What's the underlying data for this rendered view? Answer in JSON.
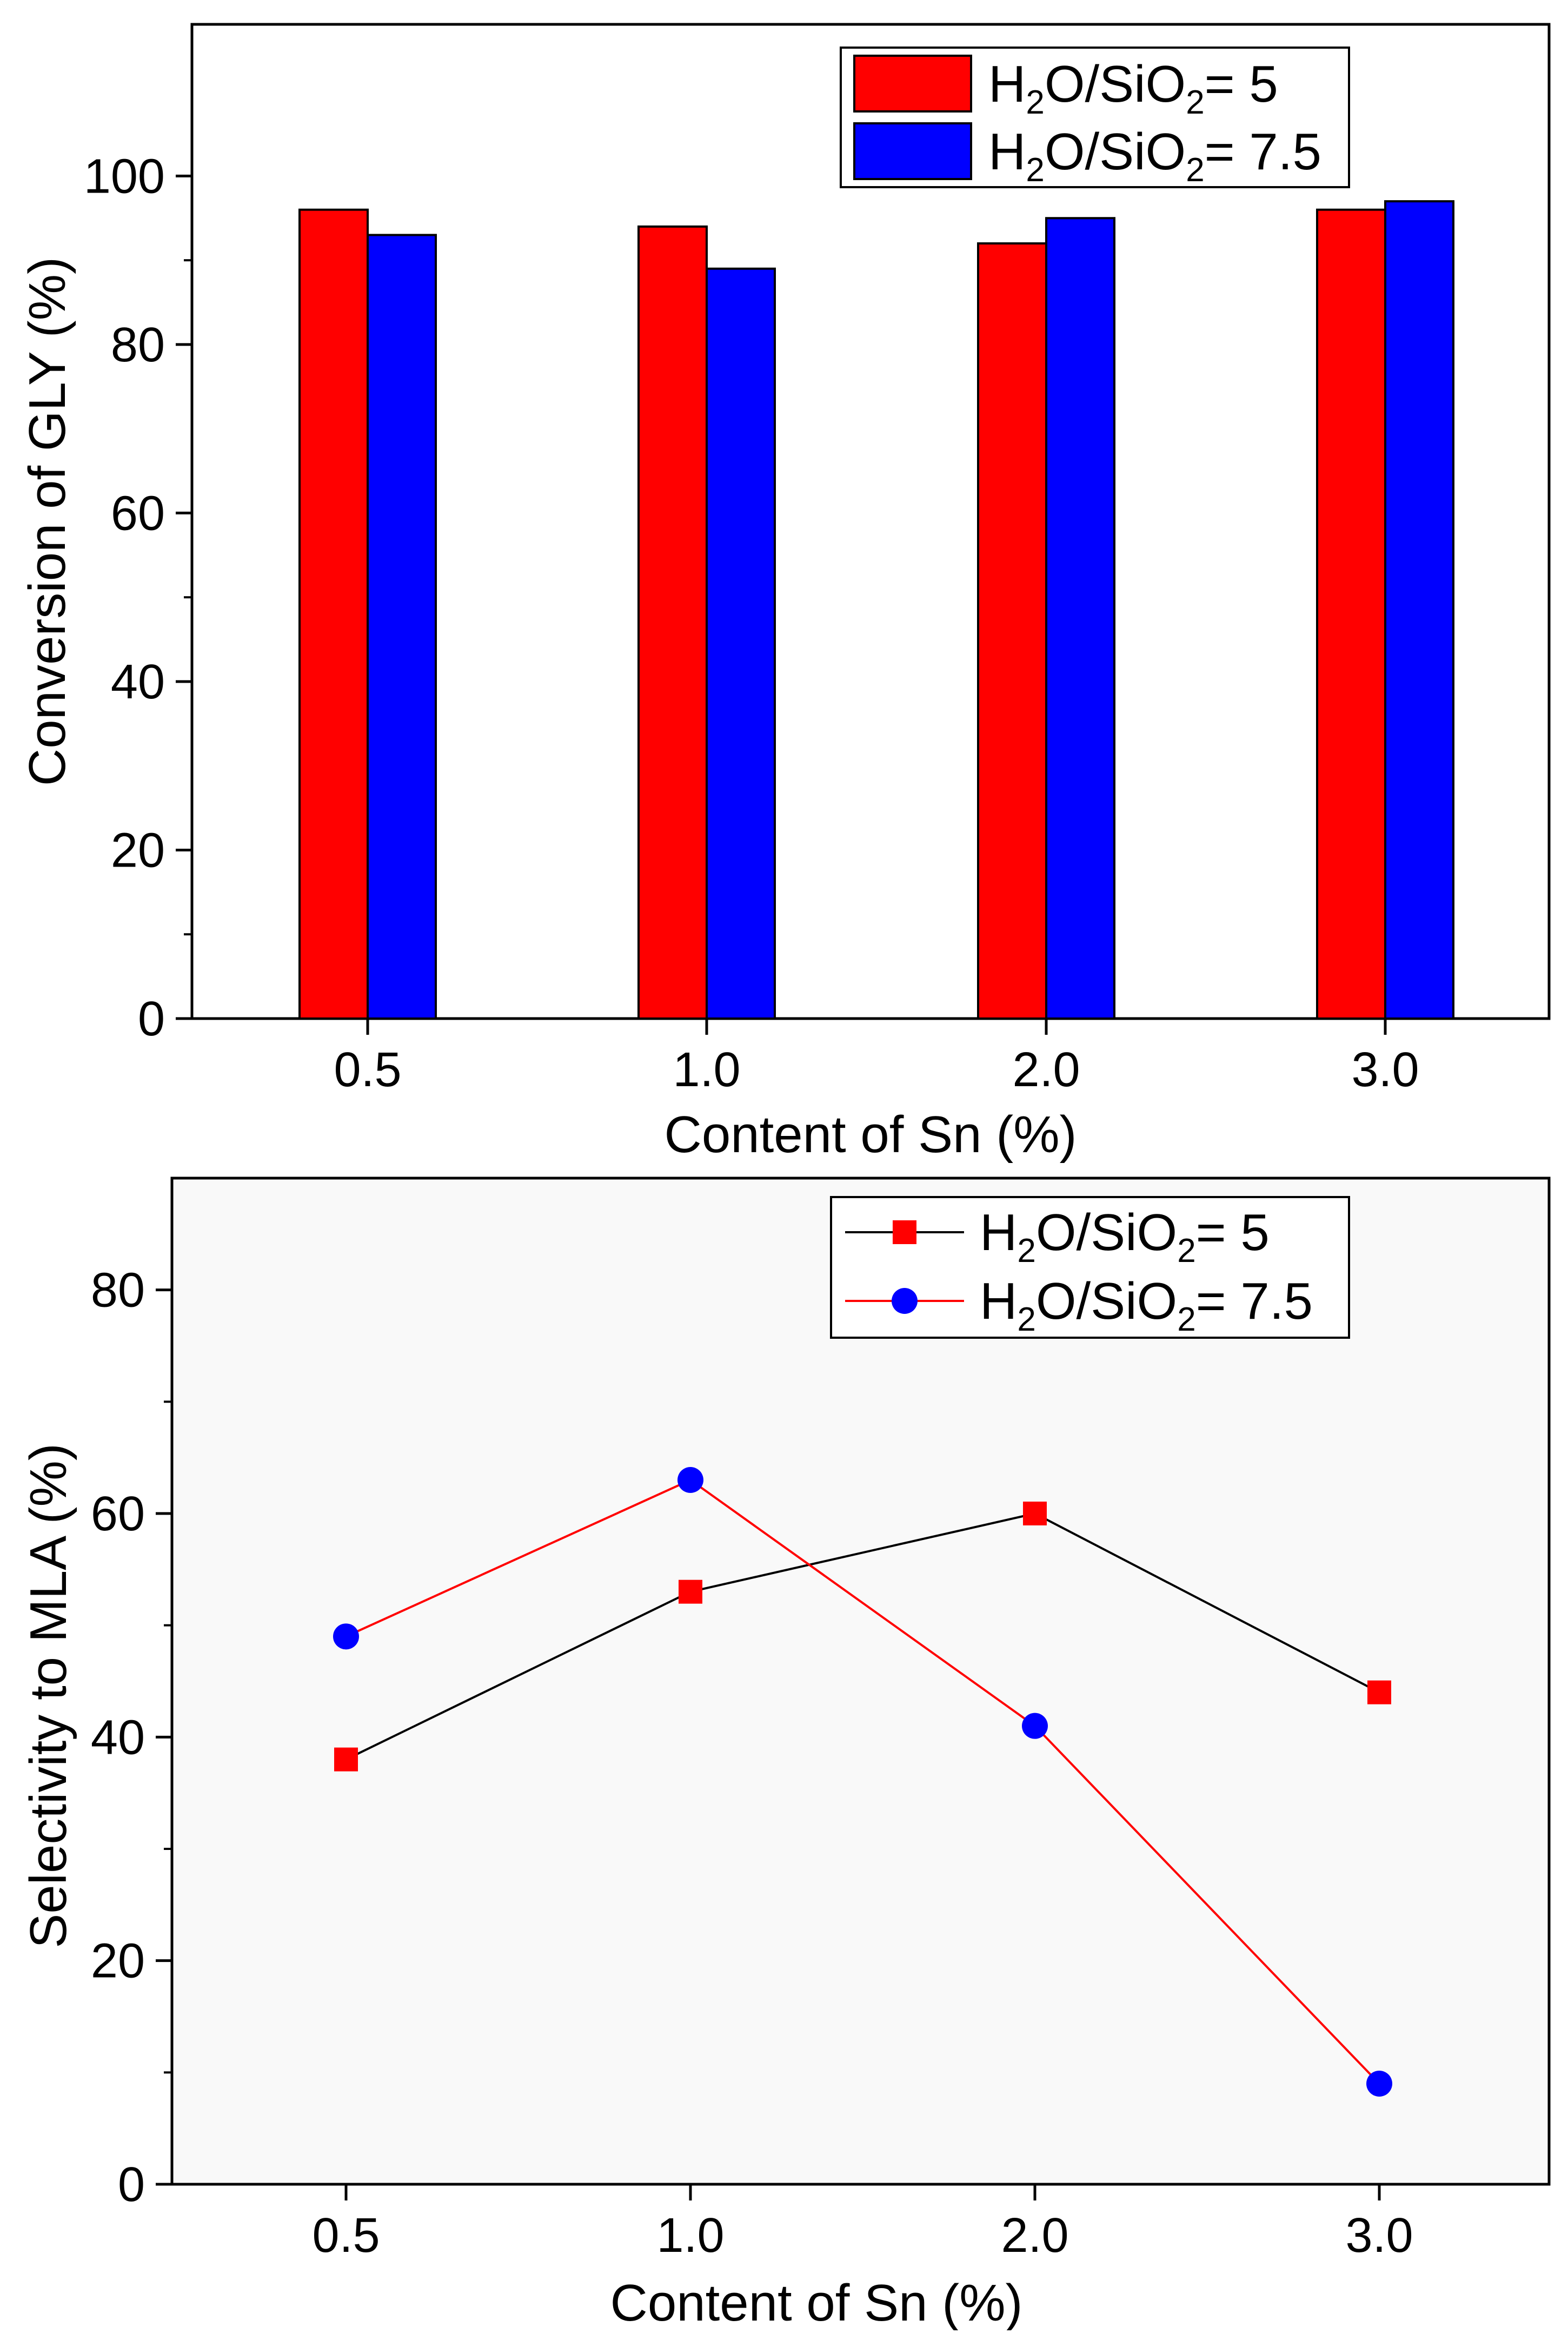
{
  "chart_data": [
    {
      "type": "bar",
      "categories": [
        "0.5",
        "1.0",
        "2.0",
        "3.0"
      ],
      "series": [
        {
          "name": "H2O/SiO2= 5",
          "legend_base": "H",
          "legend_sub1": "2",
          "legend_mid": "O/SiO",
          "legend_sub2": "2",
          "legend_tail": "= 5",
          "color": "#ff0000",
          "values": [
            96,
            94,
            92,
            96
          ]
        },
        {
          "name": "H2O/SiO2= 7.5",
          "legend_base": "H",
          "legend_sub1": "2",
          "legend_mid": "O/SiO",
          "legend_sub2": "2",
          "legend_tail": "= 7.5",
          "color": "#0000ff",
          "values": [
            93,
            89,
            95,
            97
          ]
        }
      ],
      "ylim": [
        0,
        118
      ],
      "yticks": [
        "0",
        "20",
        "40",
        "60",
        "80",
        "100"
      ],
      "xlabel": "Content of Sn (%)",
      "ylabel": "Conversion of GLY (%)",
      "legend_position": "top-right"
    },
    {
      "type": "line",
      "categories": [
        "0.5",
        "1.0",
        "2.0",
        "3.0"
      ],
      "series": [
        {
          "name": "H2O/SiO2= 5",
          "legend_base": "H",
          "legend_sub1": "2",
          "legend_mid": "O/SiO",
          "legend_sub2": "2",
          "legend_tail": "= 5",
          "marker": "square",
          "marker_color": "#ff0000",
          "line_color": "#000000",
          "values": [
            38,
            53,
            60,
            44
          ]
        },
        {
          "name": "H2O/SiO2= 7.5",
          "legend_base": "H",
          "legend_sub1": "2",
          "legend_mid": "O/SiO",
          "legend_sub2": "2",
          "legend_tail": "= 7.5",
          "marker": "circle",
          "marker_color": "#0000ff",
          "line_color": "#ff0000",
          "values": [
            49,
            63,
            41,
            9
          ]
        }
      ],
      "ylim": [
        0,
        90
      ],
      "yticks": [
        "0",
        "20",
        "40",
        "60",
        "80"
      ],
      "xlabel": "Content of Sn (%)",
      "ylabel": "Selectivity to MLA (%)",
      "legend_position": "top-right"
    }
  ]
}
